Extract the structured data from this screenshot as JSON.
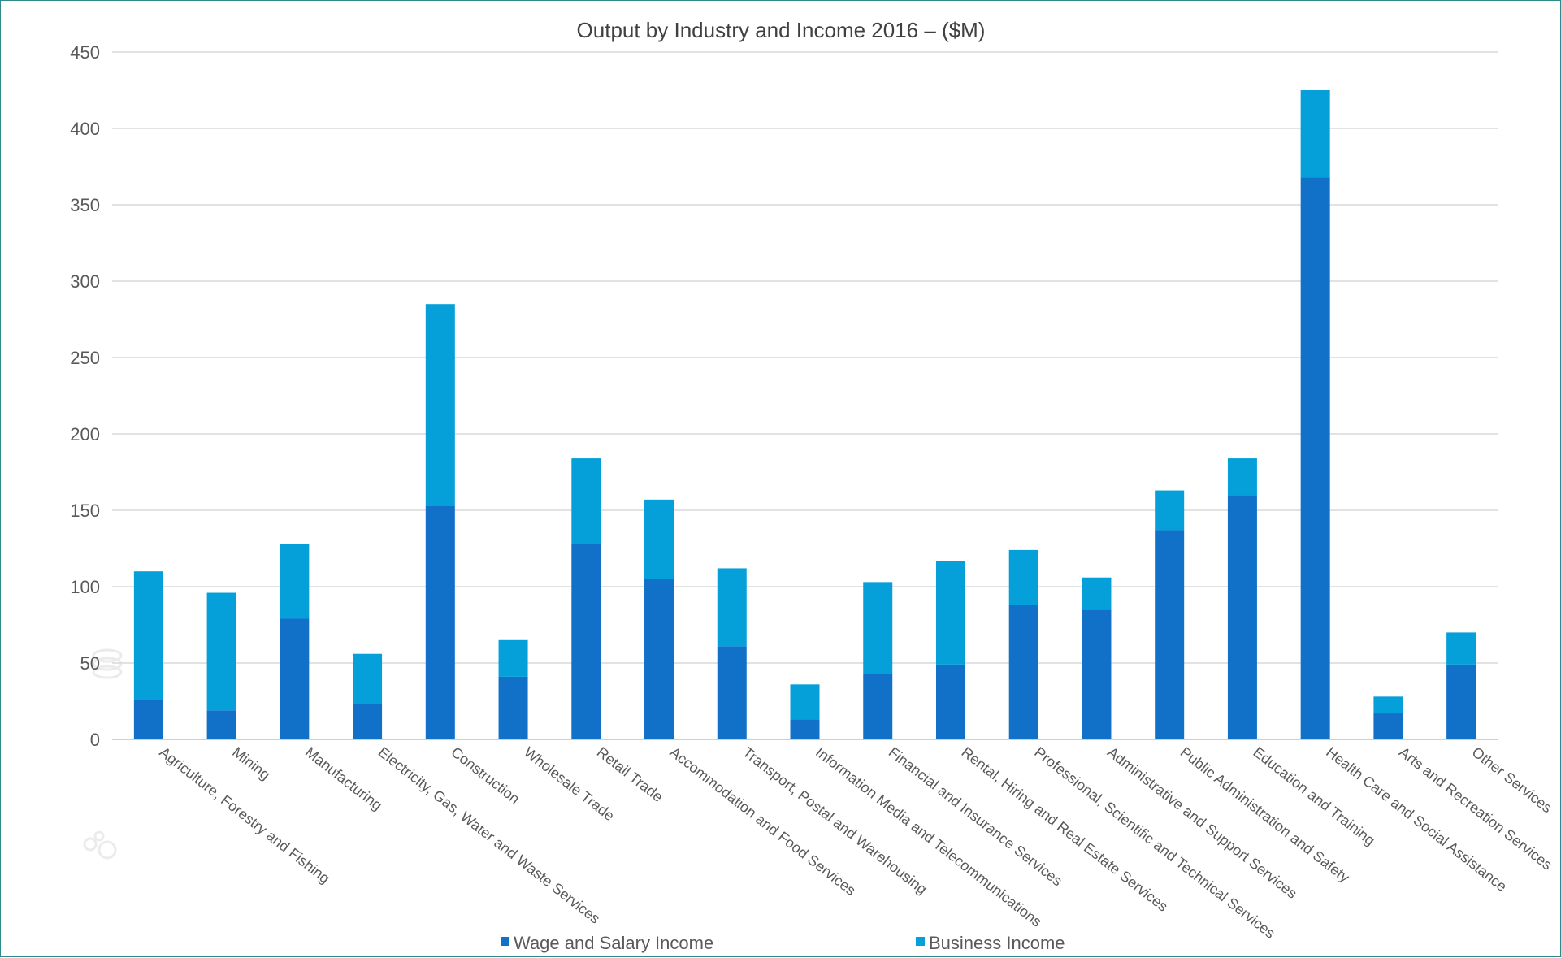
{
  "chart_data": {
    "type": "bar",
    "stacked": true,
    "title": "Output by Industry and Income 2016 – ($M)",
    "xlabel": "",
    "ylabel": "",
    "ylim": [
      0,
      450
    ],
    "yticks": [
      0,
      50,
      100,
      150,
      200,
      250,
      300,
      350,
      400,
      450
    ],
    "grid": true,
    "legend_position": "bottom",
    "categories": [
      "Agriculture, Forestry and Fishing",
      "Mining",
      "Manufacturing",
      "Electricity, Gas, Water and Waste Services",
      "Construction",
      "Wholesale Trade",
      "Retail Trade",
      "Accommodation and Food Services",
      "Transport, Postal and Warehousing",
      "Information Media and Telecommunications",
      "Financial and Insurance Services",
      "Rental, Hiring and Real Estate Services",
      "Professional, Scientific and Technical Services",
      "Administrative and Support Services",
      "Public Administration and Safety",
      "Education and Training",
      "Health Care and Social Assistance",
      "Arts and Recreation Services",
      "Other Services"
    ],
    "series": [
      {
        "name": "Wage and Salary Income",
        "color": "#1170c8",
        "values": [
          26,
          19,
          79,
          23,
          153,
          41,
          128,
          105,
          61,
          13,
          43,
          49,
          88,
          85,
          137,
          160,
          368,
          17,
          49
        ]
      },
      {
        "name": "Business Income",
        "color": "#05a0da",
        "values": [
          84,
          77,
          49,
          33,
          132,
          24,
          56,
          52,
          51,
          23,
          60,
          68,
          36,
          21,
          26,
          24,
          57,
          11,
          21
        ]
      }
    ]
  }
}
